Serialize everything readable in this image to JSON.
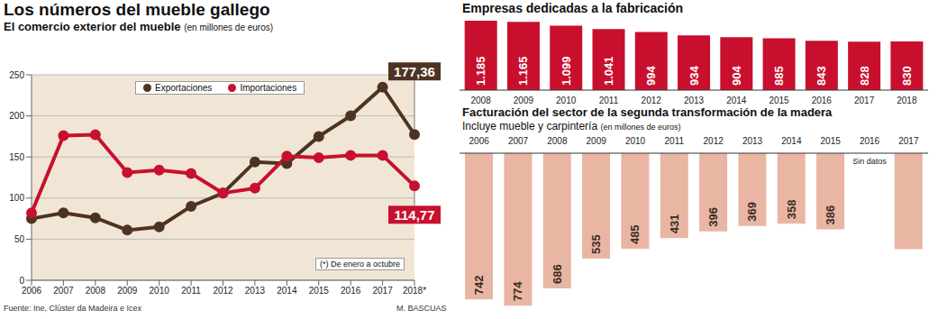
{
  "title": "Los números del mueble gallego",
  "source": "Fuente: Ine, Clúster da Madeira e Icex",
  "credit": "M. BASCUAS",
  "chart_data": [
    {
      "type": "line",
      "title": "El comercio exterior del mueble",
      "subtitle": "(en millones de euros)",
      "categories": [
        "2006",
        "2007",
        "2008",
        "2009",
        "2010",
        "2011",
        "2012",
        "2013",
        "2014",
        "2015",
        "2016",
        "2017",
        "2018*"
      ],
      "series": [
        {
          "name": "Exportaciones",
          "color": "#4e3322",
          "values": [
            75,
            82,
            76,
            61,
            65,
            90,
            106,
            144,
            142,
            175,
            200,
            235,
            177.36
          ],
          "value_labels": [
            null,
            null,
            null,
            null,
            null,
            null,
            null,
            null,
            null,
            null,
            null,
            null,
            "177,36"
          ]
        },
        {
          "name": "Importaciones",
          "color": "#c8102e",
          "values": [
            82,
            176,
            177,
            131,
            134,
            130,
            106,
            112,
            151,
            149,
            152,
            152,
            114.77
          ],
          "value_labels": [
            null,
            null,
            null,
            null,
            null,
            null,
            null,
            null,
            null,
            null,
            null,
            null,
            "114,77"
          ]
        }
      ],
      "ylim": [
        0,
        250
      ],
      "yticks": [
        0,
        50,
        100,
        150,
        200,
        250
      ],
      "grid": true,
      "legend": "top",
      "marker": "circle",
      "annotations": [
        {
          "text": "(*) De enero a octubre"
        }
      ]
    },
    {
      "type": "bar",
      "title": "Empresas dedicadas a la fabricación",
      "categories": [
        "2008",
        "2009",
        "2010",
        "2011",
        "2012",
        "2013",
        "2014",
        "2015",
        "2016",
        "2017",
        "2018"
      ],
      "values": [
        1185,
        1165,
        1099,
        1041,
        994,
        934,
        904,
        885,
        843,
        828,
        830
      ],
      "value_labels": [
        "1.185",
        "1.165",
        "1.099",
        "1.041",
        "994",
        "934",
        "904",
        "885",
        "843",
        "828",
        "830"
      ],
      "color": "#c8102e",
      "ylim": [
        0,
        1200
      ],
      "data_labels": true,
      "tick_labels": "x"
    },
    {
      "type": "bar",
      "title": "Facturación del sector de la segunda transformación de la madera",
      "subtitle": "Incluye mueble y carpintería",
      "note": "(en millones de euros)",
      "categories": [
        "2006",
        "2007",
        "2008",
        "2009",
        "2010",
        "2011",
        "2012",
        "2013",
        "2014",
        "2015",
        "2016",
        "2017"
      ],
      "values": [
        742,
        774,
        686,
        535,
        485,
        431,
        396,
        369,
        358,
        386,
        null,
        487
      ],
      "color": "#e9b6a3",
      "ylim": [
        0,
        800
      ],
      "data_labels": true,
      "tick_labels": "x",
      "annotations": [
        {
          "category": "2016",
          "text": "Sin datos"
        }
      ]
    }
  ]
}
